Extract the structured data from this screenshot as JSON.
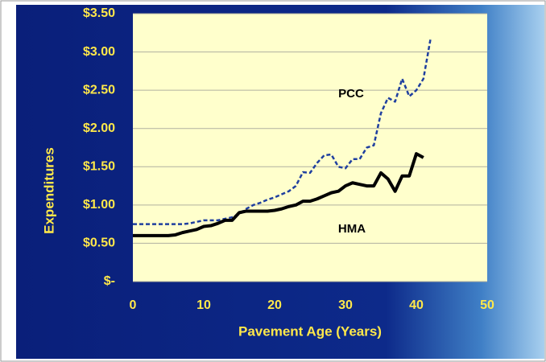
{
  "chart_data": {
    "type": "line",
    "xlabel": "Pavement Age (Years)",
    "ylabel": "Expenditures",
    "annotations": [
      "PCC",
      "HMA"
    ],
    "x": [
      0,
      1,
      2,
      3,
      4,
      5,
      6,
      7,
      8,
      9,
      10,
      11,
      12,
      13,
      14,
      15,
      16,
      17,
      18,
      19,
      20,
      21,
      22,
      23,
      24,
      25,
      26,
      27,
      28,
      29,
      30,
      31,
      32,
      33,
      34,
      35,
      36,
      37,
      38,
      39,
      40,
      41,
      42
    ],
    "series": [
      {
        "name": "PCC",
        "color": "#1f3f9f",
        "dashed": true,
        "values": [
          0.75,
          0.75,
          0.75,
          0.75,
          0.75,
          0.75,
          0.75,
          0.75,
          0.76,
          0.78,
          0.8,
          0.8,
          0.8,
          0.82,
          0.84,
          0.88,
          0.95,
          1.0,
          1.03,
          1.07,
          1.1,
          1.14,
          1.18,
          1.25,
          1.43,
          1.42,
          1.55,
          1.65,
          1.66,
          1.5,
          1.48,
          1.6,
          1.6,
          1.75,
          1.78,
          2.2,
          2.4,
          2.35,
          2.65,
          2.42,
          2.5,
          2.65,
          3.17
        ]
      },
      {
        "name": "HMA",
        "color": "#000000",
        "dashed": false,
        "values": [
          0.6,
          0.6,
          0.6,
          0.6,
          0.6,
          0.6,
          0.61,
          0.64,
          0.66,
          0.68,
          0.72,
          0.73,
          0.76,
          0.8,
          0.8,
          0.9,
          0.92,
          0.92,
          0.92,
          0.92,
          0.93,
          0.95,
          0.98,
          1.0,
          1.05,
          1.05,
          1.08,
          1.12,
          1.16,
          1.18,
          1.25,
          1.29,
          1.27,
          1.25,
          1.25,
          1.42,
          1.34,
          1.18,
          1.38,
          1.38,
          1.67,
          1.62,
          null
        ]
      }
    ],
    "xlim": [
      0,
      50
    ],
    "xticks": [
      0,
      10,
      20,
      30,
      40,
      50
    ],
    "ylim": [
      0,
      3.5
    ],
    "yticks": [
      {
        "value": 0,
        "label": "$-"
      },
      {
        "value": 0.5,
        "label": "$0.50"
      },
      {
        "value": 1.0,
        "label": "$1.00"
      },
      {
        "value": 1.5,
        "label": "$1.50"
      },
      {
        "value": 2.0,
        "label": "$2.00"
      },
      {
        "value": 2.5,
        "label": "$2.50"
      },
      {
        "value": 3.0,
        "label": "$3.00"
      },
      {
        "value": 3.5,
        "label": "$3.50"
      }
    ],
    "grid": true,
    "plot_background": "#ffffcc"
  }
}
